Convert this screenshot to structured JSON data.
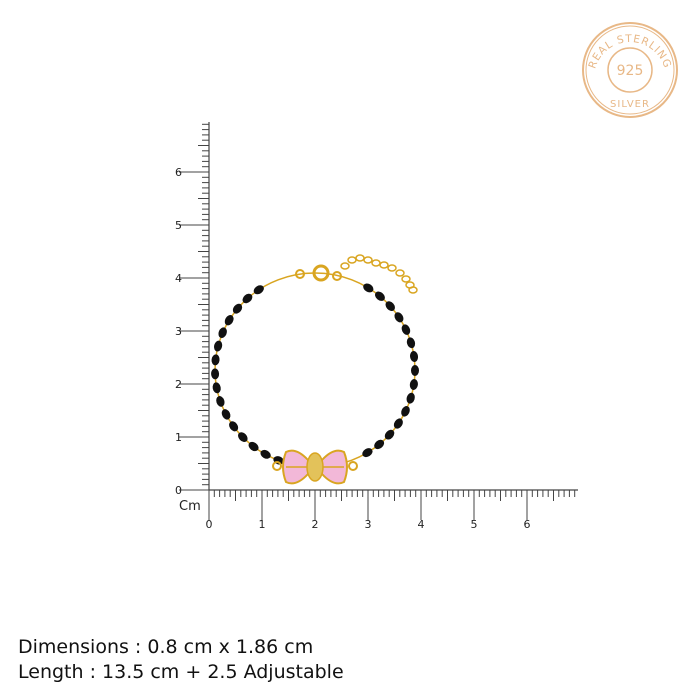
{
  "seal": {
    "top_text": "REAL STERLING",
    "center_text": "925",
    "bottom_text": "SILVER",
    "color": "#e8b887"
  },
  "ruler": {
    "unit_label": "Cm",
    "x_labels": [
      "0",
      "1",
      "2",
      "3",
      "4",
      "5",
      "6"
    ],
    "y_labels": [
      "0",
      "1",
      "2",
      "3",
      "4",
      "5",
      "6"
    ],
    "color": "#444444"
  },
  "product": {
    "bead_color": "#111111",
    "gold_color": "#d9a521",
    "bow_color": "#f2b8d8"
  },
  "specs": {
    "dimensions": "Dimensions : 0.8 cm x 1.86 cm",
    "length": "Length : 13.5 cm + 2.5 Adjustable"
  }
}
